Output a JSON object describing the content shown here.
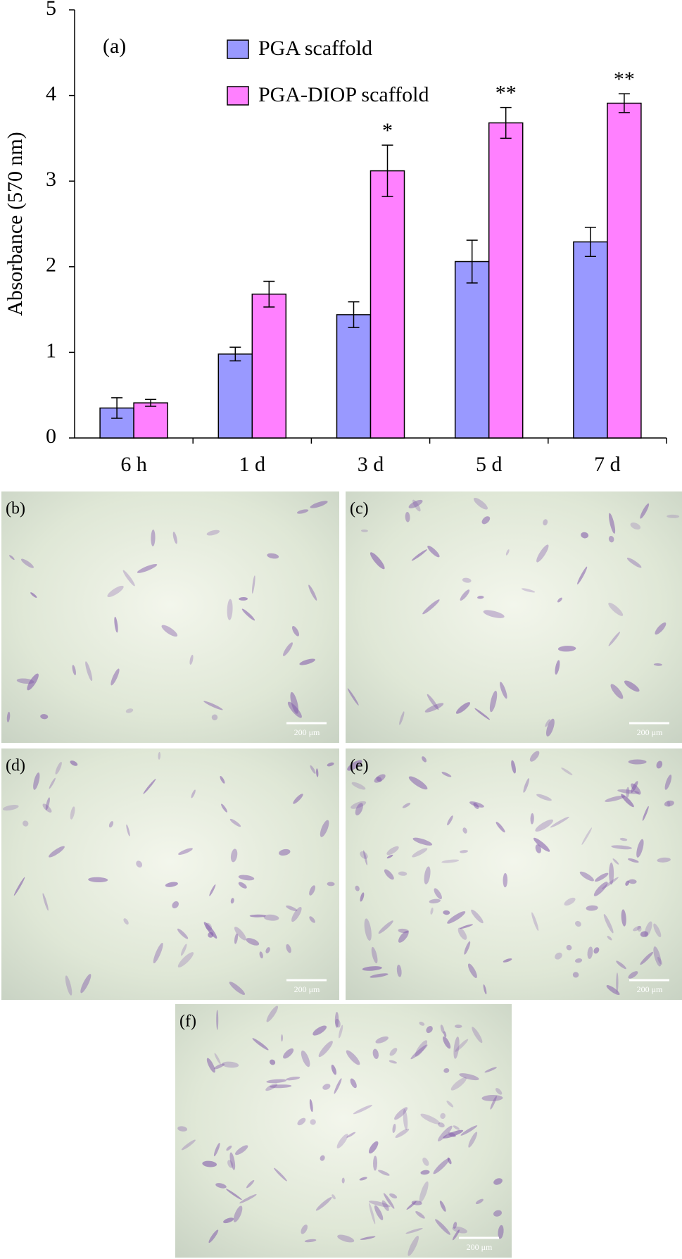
{
  "chart_data": {
    "type": "bar",
    "panel_label": "(a)",
    "y_label": "Absorbance (570 nm)",
    "categories": [
      "6 h",
      "1 d",
      "3 d",
      "5 d",
      "7 d"
    ],
    "series": [
      {
        "name": "PGA scaffold",
        "color": "#9999ff",
        "values": [
          0.35,
          0.98,
          1.44,
          2.06,
          2.29
        ],
        "errors": [
          0.12,
          0.08,
          0.15,
          0.25,
          0.17
        ]
      },
      {
        "name": "PGA-DIOP scaffold",
        "color": "#ff80ff",
        "values": [
          0.41,
          1.68,
          3.12,
          3.68,
          3.91
        ],
        "errors": [
          0.04,
          0.15,
          0.3,
          0.18,
          0.11
        ]
      }
    ],
    "significance": [
      null,
      null,
      "*",
      "**",
      "**"
    ],
    "ylim": [
      0,
      5
    ],
    "yticks": [
      0,
      1,
      2,
      3,
      4,
      5
    ]
  },
  "panels": [
    {
      "label": "(b)",
      "scale_bar": "200 μm"
    },
    {
      "label": "(c)",
      "scale_bar": "200 μm"
    },
    {
      "label": "(d)",
      "scale_bar": "200 μm"
    },
    {
      "label": "(e)",
      "scale_bar": "200 μm"
    },
    {
      "label": "(f)",
      "scale_bar": "200 μm"
    }
  ]
}
